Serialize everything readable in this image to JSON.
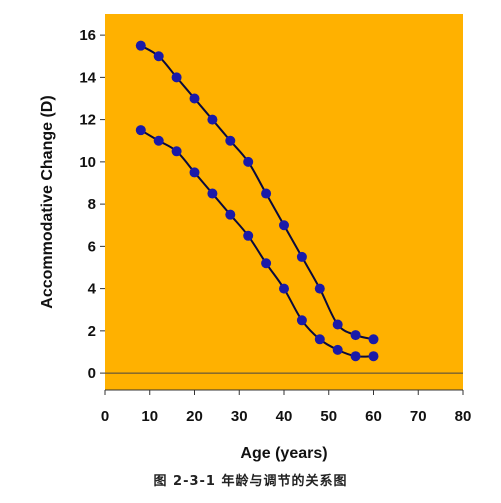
{
  "chart_data": {
    "type": "line",
    "xlabel": "Age (years)",
    "ylabel": "Accommodative Change (D)",
    "xlim": [
      0,
      80
    ],
    "ylim": [
      -0.8,
      17
    ],
    "xticks": [
      0,
      10,
      20,
      30,
      40,
      50,
      60,
      70,
      80
    ],
    "yticks": [
      0,
      2,
      4,
      6,
      8,
      10,
      12,
      14,
      16
    ],
    "grid": false,
    "background_color": "#FFB100",
    "series_color": "#1a1aa8",
    "line_color": "#0a0a3c",
    "series": [
      {
        "x": [
          8,
          12,
          16,
          20,
          24,
          28,
          32,
          36,
          40,
          44,
          48,
          52,
          56,
          60
        ],
        "y": [
          15.5,
          15.0,
          14.0,
          13.0,
          12.0,
          11.0,
          10.0,
          8.5,
          7.0,
          5.5,
          4.0,
          2.3,
          1.8,
          1.6
        ]
      },
      {
        "x": [
          8,
          12,
          16,
          20,
          24,
          28,
          32,
          36,
          40,
          44,
          48,
          52,
          56,
          60
        ],
        "y": [
          11.5,
          11.0,
          10.5,
          9.5,
          8.5,
          7.5,
          6.5,
          5.2,
          4.0,
          2.5,
          1.6,
          1.1,
          0.8,
          0.8
        ]
      }
    ],
    "caption": "图 2-3-1 年龄与调节的关系图"
  }
}
